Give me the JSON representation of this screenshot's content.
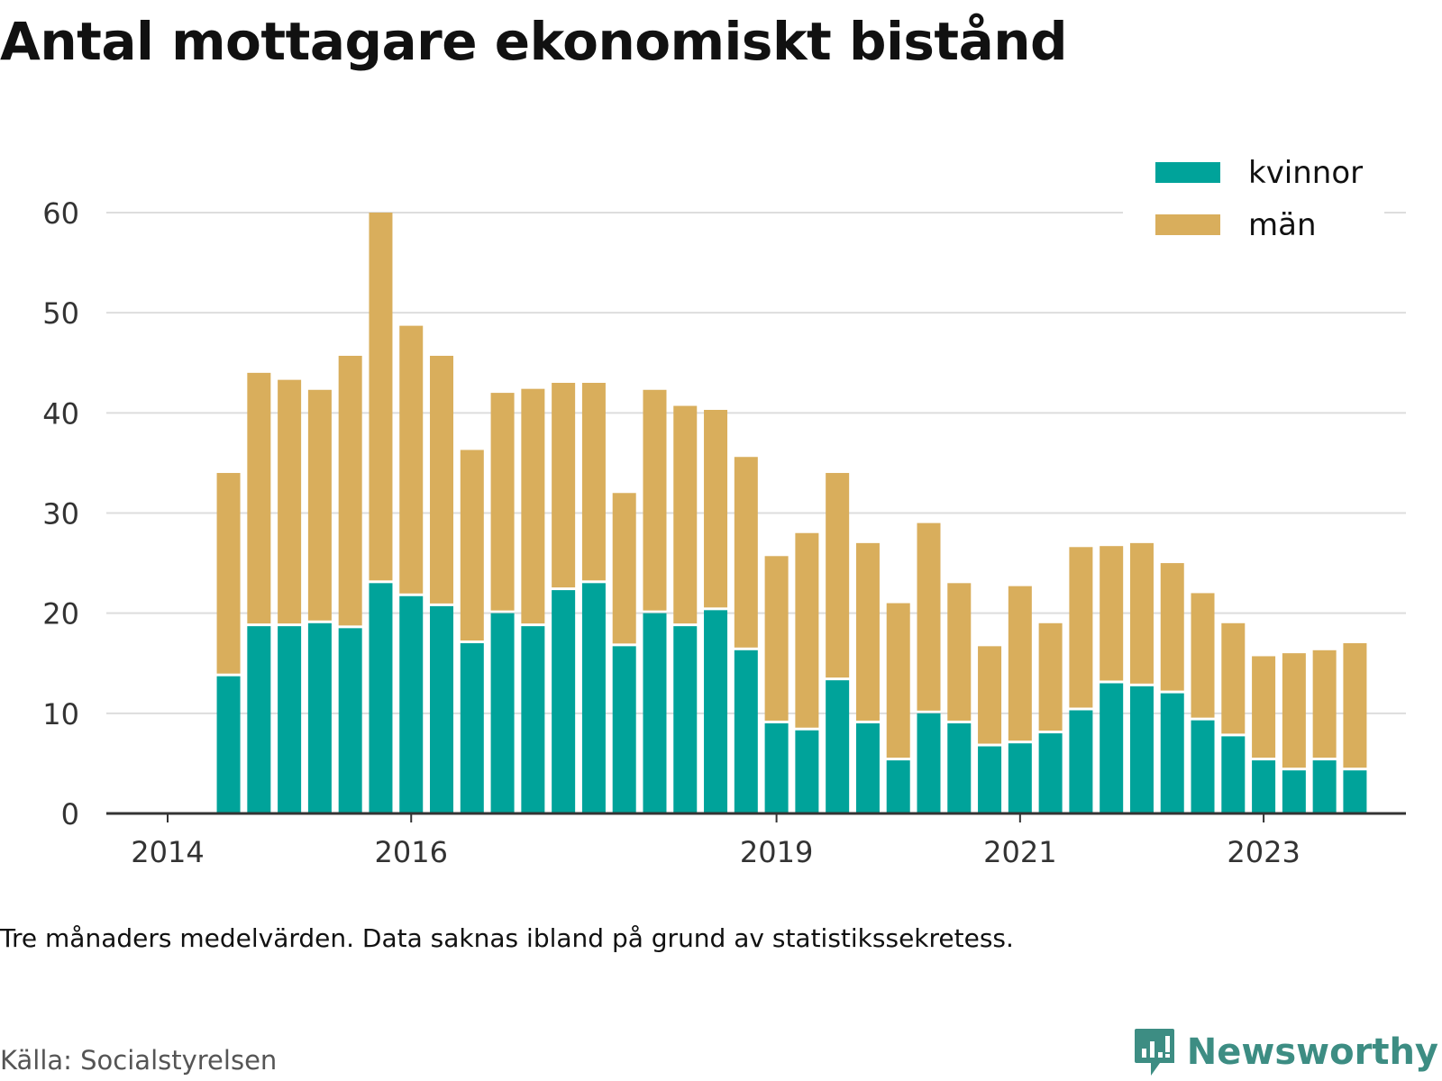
{
  "title": "Antal mottagare ekonomiskt bistånd",
  "note": "Tre månaders medelvärden. Data saknas ibland på grund av statistikssekretess.",
  "source": "Källa: Socialstyrelsen",
  "brand": "Newsworthy",
  "colors": {
    "women": "#00a39a",
    "men": "#d9ae5c",
    "grid": "#dddddd",
    "axis": "#333333",
    "brand": "#3d8d83"
  },
  "chart_data": {
    "type": "bar",
    "stacked": true,
    "title": "Antal mottagare ekonomiskt bistånd",
    "xlabel": "",
    "ylabel": "",
    "ylim": [
      0,
      60
    ],
    "yticks": [
      "0",
      "10",
      "20",
      "30",
      "40",
      "50",
      "60"
    ],
    "xticks": [
      "2014",
      "2016",
      "2019",
      "2021",
      "2023"
    ],
    "xtick_quarters": [
      0,
      8,
      20,
      28,
      36
    ],
    "grid": true,
    "legend_position": "top-right",
    "categories": [
      2,
      3,
      4,
      5,
      6,
      7,
      8,
      9,
      10,
      11,
      12,
      13,
      14,
      15,
      16,
      17,
      18,
      19,
      20,
      21,
      22,
      23,
      24,
      25,
      26,
      27,
      28,
      29,
      30,
      31,
      32,
      33,
      34,
      35,
      36,
      37,
      38,
      39
    ],
    "series": [
      {
        "name": "kvinnor",
        "values": [
          13.7,
          18.7,
          18.7,
          19.0,
          18.5,
          23.0,
          21.7,
          20.7,
          17.0,
          20.0,
          18.7,
          22.3,
          23.0,
          16.7,
          20.0,
          18.7,
          20.3,
          16.3,
          9.0,
          8.3,
          13.3,
          9.0,
          5.3,
          10.0,
          9.0,
          6.7,
          7.0,
          8.0,
          10.3,
          13.0,
          12.7,
          12.0,
          9.3,
          7.7,
          5.3,
          4.3,
          5.3,
          4.3
        ]
      },
      {
        "name": "män",
        "values": [
          20.3,
          25.3,
          24.6,
          23.3,
          27.2,
          37.0,
          27.0,
          25.0,
          19.3,
          22.0,
          23.7,
          20.7,
          20.0,
          15.3,
          22.3,
          22.0,
          20.0,
          19.3,
          16.7,
          19.7,
          20.7,
          18.0,
          15.7,
          19.0,
          14.0,
          10.0,
          15.7,
          11.0,
          16.3,
          13.7,
          14.3,
          13.0,
          12.7,
          11.3,
          10.4,
          11.7,
          11.0,
          12.7
        ]
      }
    ]
  }
}
